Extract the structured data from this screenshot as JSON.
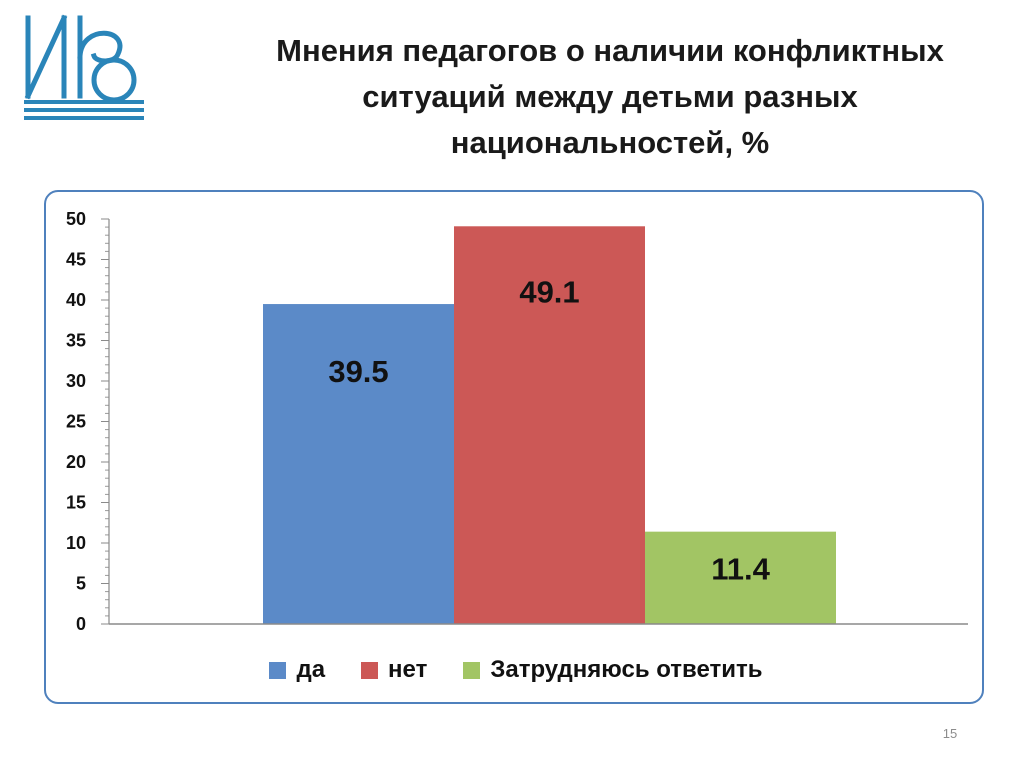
{
  "slide": {
    "title": "Мнения педагогов о наличии конфликтных ситуаций между детьми разных национальностей, %",
    "page_number": "15"
  },
  "colors": {
    "accent": "#4f81bd",
    "logo": "#2a85b9"
  },
  "chart_data": {
    "type": "bar",
    "title": "",
    "xlabel": "",
    "ylabel": "",
    "ylim": [
      0,
      50
    ],
    "yticks": [
      "0",
      "5",
      "10",
      "15",
      "20",
      "25",
      "30",
      "35",
      "40",
      "45",
      "50"
    ],
    "grid": false,
    "legend_position": "bottom",
    "series": [
      {
        "name": "да",
        "values": [
          39.5
        ],
        "label": "39.5",
        "color": "#5b8ac8"
      },
      {
        "name": "нет",
        "values": [
          49.1
        ],
        "label": "49.1",
        "color": "#cc5856"
      },
      {
        "name": "Затрудняюсь ответить",
        "values": [
          11.4
        ],
        "label": "11.4",
        "color": "#a2c564"
      }
    ]
  }
}
